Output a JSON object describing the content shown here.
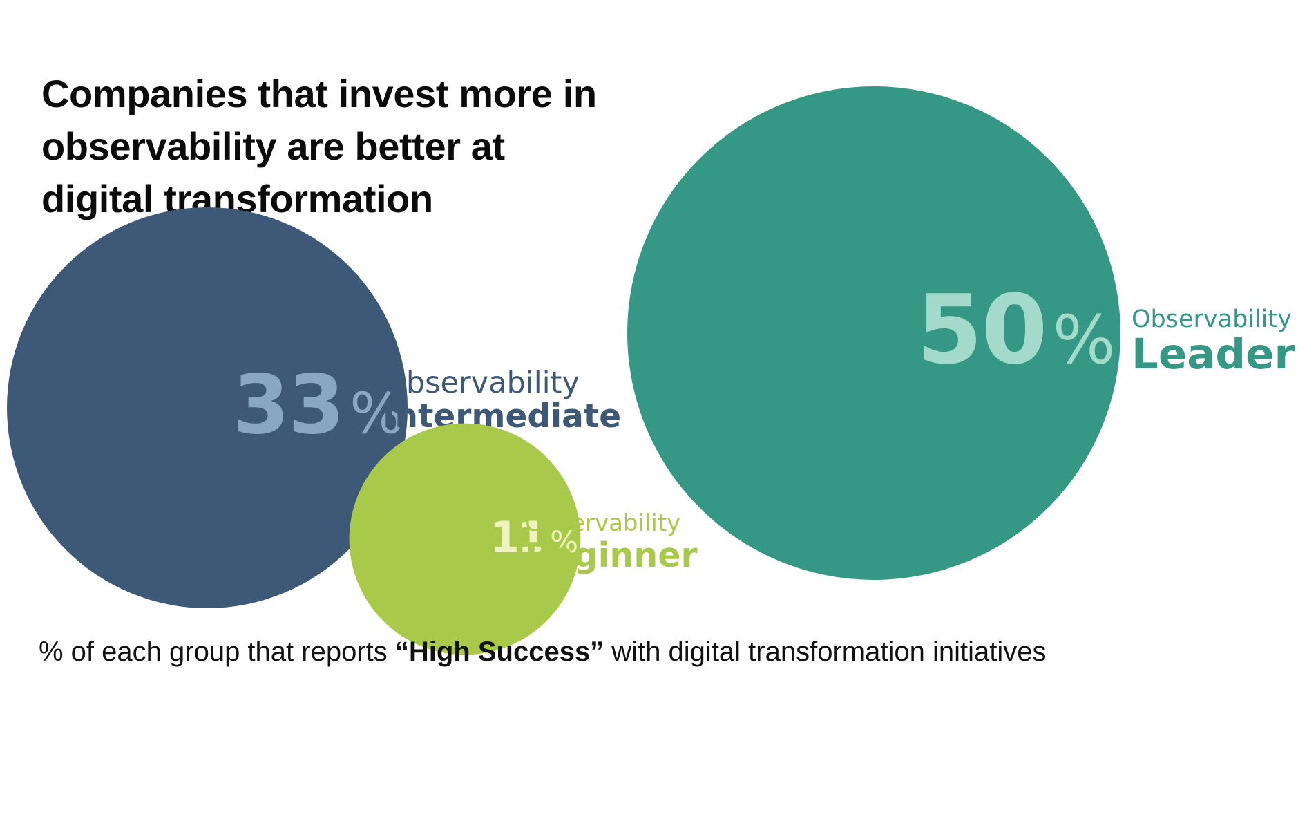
{
  "chart_data": {
    "type": "bubble",
    "title_lines": [
      "Companies that invest more in",
      "observability are better at",
      "digital transformation"
    ],
    "footnote": {
      "before": "% of each group that reports ",
      "emphasis": "“High Success”",
      "after": " with digital transformation initiatives"
    },
    "series": [
      {
        "key": "intermediate",
        "value": 33,
        "number_text": "33",
        "percent_symbol": "%",
        "label_top": "Observability",
        "label_main": "Intermediate",
        "colors": {
          "circle": "#3e5977",
          "number": "#89a6c4",
          "label": "#3e5977"
        }
      },
      {
        "key": "beginner",
        "value": 11,
        "number_text": "11",
        "percent_symbol": "%",
        "label_top": "Observability",
        "label_main": "Beginner",
        "colors": {
          "circle": "#a9c94a",
          "number": "#eef4bf",
          "label": "#a9c94a"
        }
      },
      {
        "key": "leader",
        "value": 50,
        "number_text": "50",
        "percent_symbol": "%",
        "label_top": "Observability",
        "label_main": "Leader",
        "colors": {
          "circle": "#359884",
          "number": "#a3dac9",
          "label": "#359884"
        }
      }
    ]
  }
}
